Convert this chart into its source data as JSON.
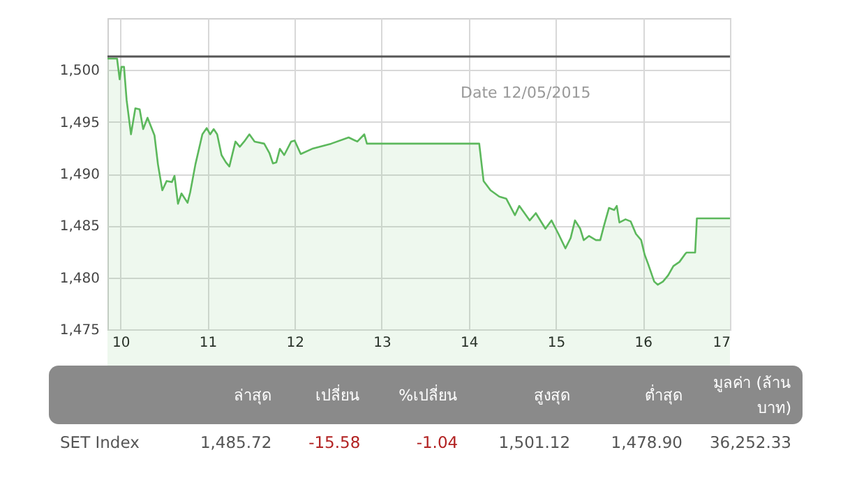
{
  "chart_data": [
    {
      "type": "area",
      "annotations": [
        "Date 12/05/2015"
      ],
      "x": [
        9.85,
        9.96,
        9.99,
        10.01,
        10.04,
        10.07,
        10.12,
        10.17,
        10.22,
        10.26,
        10.31,
        10.39,
        10.43,
        10.48,
        10.53,
        10.59,
        10.62,
        10.66,
        10.7,
        10.77,
        10.8,
        10.86,
        10.94,
        10.99,
        11.03,
        11.07,
        11.11,
        11.16,
        11.21,
        11.25,
        11.32,
        11.37,
        11.42,
        11.48,
        11.54,
        11.65,
        11.71,
        11.75,
        11.79,
        11.83,
        11.88,
        11.96,
        12.0,
        12.07,
        12.2,
        12.42,
        12.62,
        12.72,
        12.8,
        12.83,
        14.12,
        14.17,
        14.25,
        14.35,
        14.43,
        14.53,
        14.58,
        14.7,
        14.77,
        14.88,
        14.95,
        15.03,
        15.11,
        15.17,
        15.22,
        15.28,
        15.32,
        15.38,
        15.46,
        15.51,
        15.55,
        15.61,
        15.67,
        15.7,
        15.73,
        15.8,
        15.86,
        15.92,
        15.98,
        16.02,
        16.06,
        16.13,
        16.17,
        16.23,
        16.29,
        16.35,
        16.42,
        16.48,
        16.5,
        16.6,
        16.62,
        17.0
      ],
      "series": [
        {
          "color": "#5cb85c",
          "values": [
            1501.1,
            1501.1,
            1499.1,
            1500.3,
            1500.3,
            1497.1,
            1493.8,
            1496.3,
            1496.2,
            1494.3,
            1495.4,
            1493.7,
            1490.9,
            1488.4,
            1489.3,
            1489.2,
            1489.8,
            1487.1,
            1488.1,
            1487.2,
            1488.2,
            1490.9,
            1493.8,
            1494.4,
            1493.8,
            1494.3,
            1493.8,
            1491.8,
            1491.1,
            1490.7,
            1493.1,
            1492.6,
            1493.1,
            1493.8,
            1493.1,
            1492.9,
            1492.0,
            1491.0,
            1491.1,
            1492.4,
            1491.8,
            1493.1,
            1493.2,
            1491.9,
            1492.4,
            1492.9,
            1493.5,
            1493.1,
            1493.8,
            1492.9,
            1492.9,
            1489.3,
            1488.4,
            1487.8,
            1487.6,
            1486.0,
            1486.9,
            1485.5,
            1486.2,
            1484.7,
            1485.5,
            1484.2,
            1482.8,
            1483.8,
            1485.5,
            1484.7,
            1483.6,
            1484.0,
            1483.6,
            1483.6,
            1484.9,
            1486.7,
            1486.5,
            1486.9,
            1485.3,
            1485.6,
            1485.4,
            1484.2,
            1483.6,
            1482.2,
            1481.3,
            1479.6,
            1479.3,
            1479.6,
            1480.2,
            1481.1,
            1481.5,
            1482.2,
            1482.4,
            1482.4,
            1485.7,
            1485.7
          ]
        }
      ],
      "xlim": [
        9.85,
        17
      ],
      "xticks": [
        10,
        11,
        12,
        13,
        14,
        15,
        16,
        17
      ],
      "ylim": [
        1475,
        1505
      ],
      "yticks": [
        {
          "value": 1475,
          "label": "1,475"
        },
        {
          "value": 1480,
          "label": "1,480"
        },
        {
          "value": 1485,
          "label": "1,485"
        },
        {
          "value": 1490,
          "label": "1,490"
        },
        {
          "value": 1495,
          "label": "1,495"
        },
        {
          "value": 1500,
          "label": "1,500"
        }
      ],
      "grid": true,
      "ref_lines": [
        {
          "axis": "y",
          "value": 1501.3,
          "color": "#555555"
        }
      ]
    },
    {
      "type": "other",
      "annotations": [
        "ล่าสุด",
        "เปลี่ยน",
        "%เปลี่ยน",
        "สูงสุด",
        "ต่ำสุด",
        "มูลค่า (ล้านบาท)",
        "SET Index",
        "1,485.72",
        "-15.58",
        "-1.04",
        "1,501.12",
        "1,478.90",
        "36,252.33"
      ]
    }
  ]
}
